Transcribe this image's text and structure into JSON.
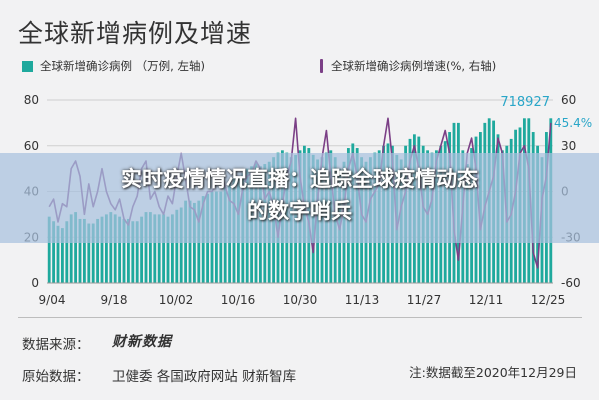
{
  "title": "全球新增病例及增速",
  "legend": {
    "bars": "全球新增确诊病例 （万例, 左轴)",
    "line": "全球新增确诊病例增速(%, 右轴)"
  },
  "banner": {
    "line1": "实时疫情情况直播：追踪全球疫情动态",
    "line2": "的数字哨兵"
  },
  "footer": {
    "source_label": "数据来源：",
    "source_brand": "财新数据",
    "raw_label": "原始数据：",
    "raw_sources": "卫健委  各国政府网站  财新智库",
    "note": "注:数据截至2020年12月29日"
  },
  "colors": {
    "bar": "#1fa99d",
    "line": "#7b3f86",
    "annotation": "#2aa6c8"
  },
  "chart_data": {
    "type": "bar",
    "x_ticks": [
      "9/04",
      "9/18",
      "10/02",
      "10/16",
      "10/30",
      "11/13",
      "11/27",
      "12/11",
      "12/25"
    ],
    "y_left": {
      "ticks": [
        "0",
        "20",
        "40",
        "60",
        "80"
      ],
      "range": [
        0,
        80
      ]
    },
    "y_right": {
      "ticks": [
        "-60",
        "-30",
        "0",
        "30",
        "60"
      ],
      "range": [
        -60,
        60
      ]
    },
    "annotations": {
      "last_value": "718927",
      "last_rate": "45.4%"
    },
    "series": [
      {
        "name": "全球新增确诊病例",
        "axis": "left",
        "type": "bar",
        "values": [
          29,
          27,
          25,
          24,
          27,
          30,
          31,
          28,
          28,
          26,
          26,
          28,
          29,
          30,
          31,
          30,
          29,
          28,
          28,
          27,
          27,
          29,
          31,
          31,
          30,
          30,
          30,
          29,
          30,
          32,
          33,
          36,
          36,
          35,
          36,
          38,
          39,
          40,
          40,
          40,
          42,
          45,
          46,
          46,
          48,
          50,
          51,
          53,
          51,
          52,
          53,
          55,
          57,
          58,
          57,
          55,
          56,
          58,
          60,
          59,
          56,
          54,
          55,
          57,
          58,
          55,
          50,
          53,
          59,
          61,
          59,
          55,
          53,
          55,
          57,
          58,
          60,
          61,
          60,
          56,
          54,
          60,
          63,
          65,
          64,
          60,
          58,
          57,
          58,
          60,
          62,
          66,
          70,
          70,
          58,
          52,
          59,
          64,
          66,
          70,
          72,
          71,
          65,
          58,
          60,
          63,
          67,
          68,
          72,
          72,
          66,
          60,
          55,
          66,
          72
        ]
      },
      {
        "name": "全球新增确诊病例增速",
        "axis": "right",
        "type": "line",
        "values": [
          -10,
          -5,
          -20,
          -8,
          -10,
          15,
          20,
          10,
          -15,
          5,
          -10,
          0,
          15,
          0,
          -8,
          -12,
          -5,
          -18,
          -22,
          -10,
          -3,
          15,
          20,
          -5,
          0,
          -10,
          -15,
          -3,
          -8,
          10,
          25,
          8,
          -10,
          -12,
          -20,
          -8,
          0,
          0,
          5,
          12,
          3,
          -6,
          -8,
          -15,
          2,
          10,
          12,
          20,
          15,
          -5,
          0,
          -10,
          -30,
          -8,
          10,
          20,
          48,
          10,
          -10,
          -20,
          -40,
          -5,
          22,
          40,
          10,
          -15,
          -25,
          -10,
          15,
          25,
          10,
          -15,
          -20,
          -5,
          0,
          5,
          30,
          48,
          20,
          -25,
          -10,
          0,
          20,
          30,
          15,
          -10,
          -15,
          -5,
          20,
          30,
          40,
          25,
          -25,
          -45,
          -10,
          25,
          35,
          15,
          -25,
          -10,
          0,
          10,
          35,
          25,
          -20,
          -15,
          0,
          25,
          30,
          15,
          -40,
          -50,
          -5,
          10,
          45
        ]
      }
    ]
  }
}
